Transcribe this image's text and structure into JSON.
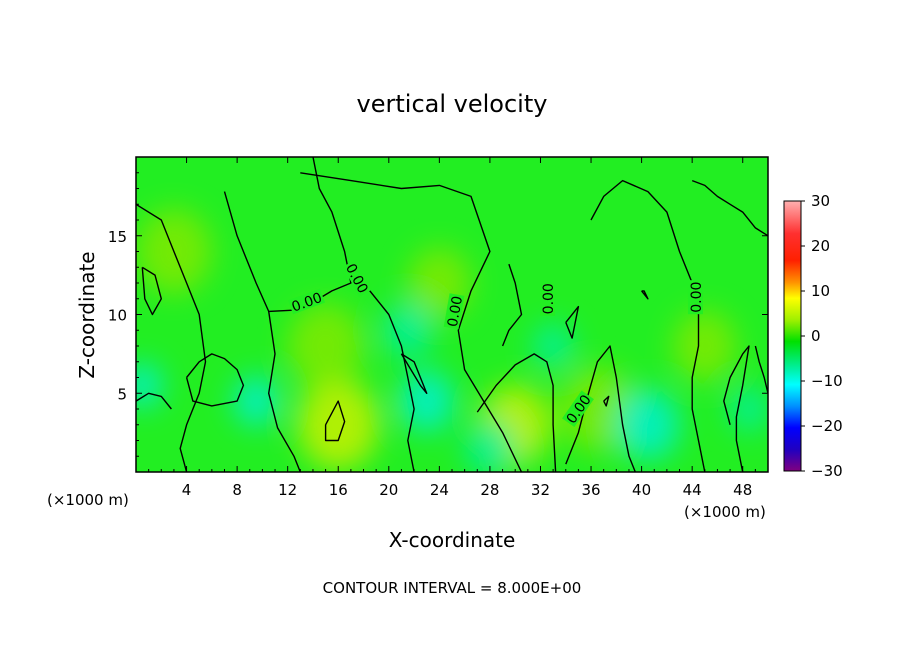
{
  "chart_data": {
    "type": "heatmap",
    "title": "vertical velocity",
    "xlabel": "X-coordinate",
    "ylabel": "Z-coordinate",
    "x_unit_left": "(×1000 m)",
    "x_unit_right": "(×1000 m)",
    "xlim": [
      0,
      50
    ],
    "ylim": [
      0,
      20
    ],
    "x_ticks": [
      4,
      8,
      12,
      16,
      20,
      24,
      28,
      32,
      36,
      40,
      44,
      48
    ],
    "y_ticks": [
      5,
      10,
      15
    ],
    "colorbar": {
      "ticks": [
        30,
        20,
        10,
        0,
        -10,
        -20,
        -30
      ],
      "range": [
        -30,
        30
      ],
      "colors": [
        "#ffb0b0",
        "#ff0000",
        "#ff8c00",
        "#ffff00",
        "#00e000",
        "#00ffff",
        "#0000ff",
        "#800080"
      ]
    },
    "contour_level": 0,
    "contour_labels": [
      {
        "text": "0.00",
        "x": 13.5,
        "y": 10.8,
        "angle": -20
      },
      {
        "text": "0.00",
        "x": 17.5,
        "y": 12.3,
        "angle": 62
      },
      {
        "text": "0.00",
        "x": 25.2,
        "y": 10.2,
        "angle": -80
      },
      {
        "text": "0.00",
        "x": 32.6,
        "y": 11.0,
        "angle": -90
      },
      {
        "text": "0.00",
        "x": 44.3,
        "y": 11.1,
        "angle": -90
      },
      {
        "text": "0.00",
        "x": 35.0,
        "y": 4.0,
        "angle": -55
      }
    ],
    "contour_lines": [
      [
        [
          0,
          17
        ],
        [
          2,
          16
        ],
        [
          3,
          14
        ],
        [
          4,
          12
        ],
        [
          5,
          10
        ],
        [
          5.5,
          7
        ],
        [
          5,
          5
        ],
        [
          4,
          3
        ],
        [
          3.5,
          1.5
        ],
        [
          4,
          0
        ]
      ],
      [
        [
          0,
          4.5
        ],
        [
          1,
          5
        ],
        [
          2,
          4.8
        ],
        [
          2.8,
          4
        ]
      ],
      [
        [
          4,
          6
        ],
        [
          5,
          7
        ],
        [
          6,
          7.5
        ],
        [
          7,
          7.2
        ],
        [
          8,
          6.5
        ],
        [
          8.5,
          5.5
        ],
        [
          8,
          4.5
        ],
        [
          6,
          4.2
        ],
        [
          4.5,
          4.5
        ],
        [
          4,
          6
        ]
      ],
      [
        [
          0.5,
          13
        ],
        [
          1.5,
          12.5
        ],
        [
          2,
          11
        ],
        [
          1.3,
          10
        ],
        [
          0.7,
          11
        ],
        [
          0.5,
          13
        ]
      ],
      [
        [
          7,
          17.8
        ],
        [
          8,
          15
        ],
        [
          9.5,
          12
        ],
        [
          10.5,
          10.2
        ],
        [
          13,
          10.3
        ],
        [
          15.5,
          11.5
        ],
        [
          17,
          12
        ],
        [
          16.5,
          14
        ],
        [
          15.5,
          16.5
        ],
        [
          14.5,
          18
        ],
        [
          14,
          20
        ]
      ],
      [
        [
          13,
          19
        ],
        [
          17,
          18.5
        ],
        [
          21,
          18
        ],
        [
          24,
          18.2
        ],
        [
          26.5,
          17.5
        ],
        [
          28,
          14
        ],
        [
          26.5,
          11.5
        ],
        [
          25.5,
          9
        ],
        [
          26,
          6.5
        ],
        [
          27.5,
          4.5
        ],
        [
          29,
          2.5
        ],
        [
          30.5,
          0
        ]
      ],
      [
        [
          10.5,
          10.2
        ],
        [
          11,
          7.5
        ],
        [
          10.5,
          5
        ],
        [
          11.2,
          2.8
        ],
        [
          12.5,
          1
        ],
        [
          13,
          0
        ]
      ],
      [
        [
          15,
          3
        ],
        [
          16,
          4.5
        ],
        [
          16.5,
          3.2
        ],
        [
          16,
          2
        ],
        [
          15,
          2
        ],
        [
          15,
          3
        ]
      ],
      [
        [
          18,
          12
        ],
        [
          20,
          10
        ],
        [
          21,
          8
        ],
        [
          21.5,
          6
        ],
        [
          22,
          4
        ],
        [
          21.5,
          2
        ],
        [
          22,
          0
        ]
      ],
      [
        [
          21,
          7.5
        ],
        [
          22,
          7
        ],
        [
          23,
          5
        ],
        [
          22.5,
          5.5
        ],
        [
          21,
          7.5
        ]
      ],
      [
        [
          27,
          3.8
        ],
        [
          28.5,
          5.5
        ],
        [
          30,
          6.8
        ],
        [
          31.5,
          7.5
        ],
        [
          32.5,
          7
        ],
        [
          33,
          5.5
        ],
        [
          33,
          3
        ],
        [
          33.2,
          0
        ]
      ],
      [
        [
          29.5,
          13.2
        ],
        [
          30,
          12
        ],
        [
          30.5,
          10
        ],
        [
          29.5,
          9
        ],
        [
          29,
          8
        ]
      ],
      [
        [
          34,
          0.5
        ],
        [
          35,
          2.5
        ],
        [
          35.8,
          5
        ],
        [
          36.5,
          7
        ],
        [
          37.5,
          8
        ],
        [
          38,
          6
        ],
        [
          38.5,
          3
        ],
        [
          39,
          1
        ],
        [
          39.5,
          0
        ]
      ],
      [
        [
          34,
          9.5
        ],
        [
          35,
          10.5
        ],
        [
          34.5,
          8.5
        ],
        [
          34,
          9.5
        ]
      ],
      [
        [
          36,
          16
        ],
        [
          37,
          17.5
        ],
        [
          38.5,
          18.5
        ],
        [
          40.5,
          17.8
        ],
        [
          42,
          16.5
        ],
        [
          43,
          14
        ],
        [
          44,
          12
        ],
        [
          44.5,
          10
        ],
        [
          44.5,
          8
        ],
        [
          44,
          6
        ],
        [
          44,
          4
        ],
        [
          44.5,
          2
        ],
        [
          45,
          0
        ]
      ],
      [
        [
          47,
          3
        ],
        [
          46.5,
          4.5
        ],
        [
          47,
          6
        ],
        [
          48,
          7.5
        ],
        [
          48.5,
          8
        ],
        [
          48,
          5.5
        ],
        [
          47.5,
          3.5
        ],
        [
          47.5,
          2
        ],
        [
          48,
          0
        ]
      ],
      [
        [
          44,
          18.5
        ],
        [
          45,
          18.2
        ],
        [
          46,
          17.5
        ],
        [
          47,
          17
        ],
        [
          48,
          16.5
        ],
        [
          49,
          15.5
        ],
        [
          50,
          15
        ]
      ],
      [
        [
          49,
          8
        ],
        [
          49.3,
          7
        ],
        [
          49.7,
          6
        ],
        [
          50,
          5
        ]
      ],
      [
        [
          40,
          11.5
        ],
        [
          40.5,
          11
        ],
        [
          40.2,
          11.5
        ],
        [
          40,
          11.5
        ]
      ],
      [
        [
          37,
          4.5
        ],
        [
          37.4,
          4.8
        ],
        [
          37.2,
          4.2
        ],
        [
          37,
          4.5
        ]
      ]
    ],
    "field_blobs": [
      {
        "x": 16,
        "y": 3,
        "r": 3.2,
        "v": 6
      },
      {
        "x": 15,
        "y": 8,
        "r": 3.0,
        "v": 4
      },
      {
        "x": 30,
        "y": 3,
        "r": 2.8,
        "v": 5
      },
      {
        "x": 36.5,
        "y": 4,
        "r": 3.0,
        "v": 4
      },
      {
        "x": 24,
        "y": 12,
        "r": 2.5,
        "v": 3
      },
      {
        "x": 45,
        "y": 8,
        "r": 2.5,
        "v": 3
      },
      {
        "x": 3,
        "y": 14,
        "r": 3.0,
        "v": 3
      },
      {
        "x": 23,
        "y": 4.5,
        "r": 2.2,
        "v": -5
      },
      {
        "x": 21.5,
        "y": 9,
        "r": 2.0,
        "v": -4
      },
      {
        "x": 40.5,
        "y": 3,
        "r": 2.5,
        "v": -5
      },
      {
        "x": 9.5,
        "y": 4.5,
        "r": 1.8,
        "v": -5
      },
      {
        "x": 0.5,
        "y": 5.5,
        "r": 1.6,
        "v": -6
      },
      {
        "x": 28,
        "y": 1.5,
        "r": 2.0,
        "v": -3
      },
      {
        "x": 48.5,
        "y": 4,
        "r": 1.6,
        "v": -4
      },
      {
        "x": 33,
        "y": 8,
        "r": 1.6,
        "v": -3
      }
    ],
    "footer": "CONTOUR INTERVAL = 8.000E+00"
  }
}
